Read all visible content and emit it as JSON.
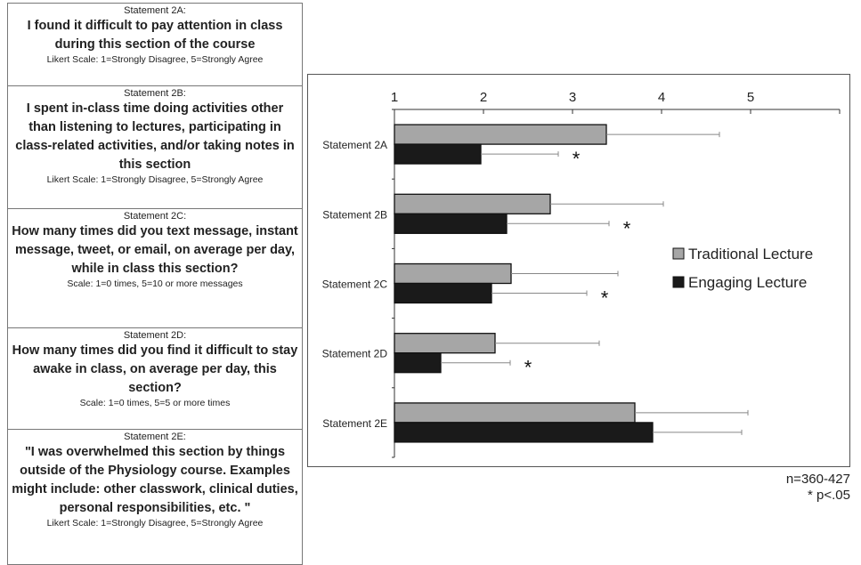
{
  "statements": [
    {
      "head": "Statement 2A:",
      "question": "I found it difficult to pay attention in class during this section of the course",
      "scale": "Likert Scale: 1=Strongly Disagree, 5=Strongly Agree"
    },
    {
      "head": "Statement 2B:",
      "question": "I spent in-class time doing activities other than listening to lectures, participating in class-related activities, and/or taking notes in this section",
      "scale": "Likert Scale: 1=Strongly Disagree, 5=Strongly Agree"
    },
    {
      "head": "Statement 2C:",
      "question": "How many times did you text message, instant message, tweet, or email, on average per day, while in class this section?",
      "scale": "Scale: 1=0 times, 5=10 or more messages"
    },
    {
      "head": "Statement 2D:",
      "question": "How many times did you find it difficult to stay awake in class, on average per day, this section?",
      "scale": "Scale: 1=0 times, 5=5 or more times"
    },
    {
      "head": "Statement 2E:",
      "question": "\"I was overwhelmed this section by things outside of the Physiology course. Examples might include: other classwork, clinical duties, personal responsibilities, etc. \"",
      "scale": "Likert Scale: 1=Strongly Disagree, 5=Strongly Agree"
    }
  ],
  "notes": {
    "n": "n=360-427",
    "p": "* p<.05"
  },
  "colors": {
    "traditional": "#a6a6a6",
    "engaging": "#1a1a1a",
    "errorbar": "#888888"
  },
  "chart_data": {
    "type": "bar",
    "orientation": "horizontal",
    "categories": [
      "Statement 2A",
      "Statement 2B",
      "Statement 2C",
      "Statement 2D",
      "Statement 2E"
    ],
    "series": [
      {
        "name": "Traditional Lecture",
        "values": [
          3.38,
          2.75,
          2.31,
          2.13,
          3.7
        ],
        "errors": [
          1.27,
          1.27,
          1.2,
          1.17,
          1.27
        ]
      },
      {
        "name": "Engaging Lecture",
        "values": [
          1.97,
          2.26,
          2.09,
          1.52,
          3.9
        ],
        "errors": [
          0.87,
          1.15,
          1.07,
          0.78,
          1.0
        ]
      }
    ],
    "significant": [
      "*",
      "*",
      "*",
      "*",
      ""
    ],
    "ticks": [
      "1",
      "2",
      "3",
      "4",
      "5"
    ],
    "xlim": [
      1,
      6
    ],
    "axis_position": "top",
    "legend_position": "right"
  }
}
